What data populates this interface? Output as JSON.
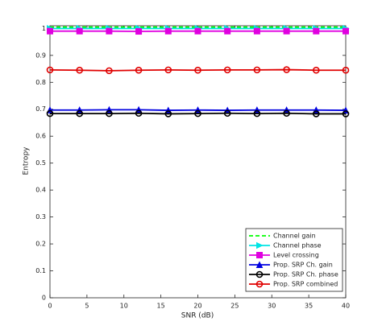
{
  "chart_data": {
    "type": "line",
    "x_label": "SNR (dB)",
    "y_label": "Entropy",
    "x": [
      0,
      4,
      8,
      12,
      16,
      20,
      24,
      28,
      32,
      36,
      40
    ],
    "xlim": [
      0,
      40
    ],
    "xticks": [
      0,
      5,
      10,
      15,
      20,
      25,
      30,
      35,
      40
    ],
    "ylim": [
      0,
      1.01
    ],
    "yticks": [
      0,
      0.1,
      0.2,
      0.3,
      0.4,
      0.5,
      0.6,
      0.7,
      0.8,
      0.9,
      1
    ],
    "legend": "lower-right",
    "series": [
      {
        "name": "Channel gain",
        "color": "#00ff00",
        "dash": true,
        "marker": "none",
        "values": [
          1.005,
          1.005,
          1.005,
          1.005,
          1.005,
          1.005,
          1.005,
          1.005,
          1.005,
          1.005,
          1.005
        ]
      },
      {
        "name": "Channel phase",
        "color": "#00e5e5",
        "dash": false,
        "marker": "triangle-right",
        "values": [
          1.0,
          1.0,
          1.0,
          1.0,
          1.0,
          1.0,
          1.0,
          1.0,
          1.0,
          1.0,
          1.0
        ]
      },
      {
        "name": "Level crossing",
        "color": "#e000e0",
        "dash": false,
        "marker": "square",
        "values": [
          0.99,
          0.99,
          0.99,
          0.989,
          0.99,
          0.99,
          0.99,
          0.99,
          0.99,
          0.99,
          0.99
        ]
      },
      {
        "name": "Prop. SRP Ch. gain",
        "color": "#0000e0",
        "dash": false,
        "marker": "triangle-up",
        "values": [
          0.697,
          0.697,
          0.698,
          0.698,
          0.696,
          0.697,
          0.696,
          0.697,
          0.697,
          0.697,
          0.696
        ]
      },
      {
        "name": "Prop. SRP Ch. phase",
        "color": "#000000",
        "dash": false,
        "marker": "circle",
        "values": [
          0.684,
          0.684,
          0.684,
          0.685,
          0.683,
          0.684,
          0.685,
          0.684,
          0.685,
          0.683,
          0.683
        ]
      },
      {
        "name": "Prop. SRP combined",
        "color": "#e00000",
        "dash": false,
        "marker": "circle",
        "values": [
          0.846,
          0.845,
          0.843,
          0.845,
          0.846,
          0.845,
          0.846,
          0.846,
          0.847,
          0.845,
          0.845
        ]
      }
    ]
  }
}
